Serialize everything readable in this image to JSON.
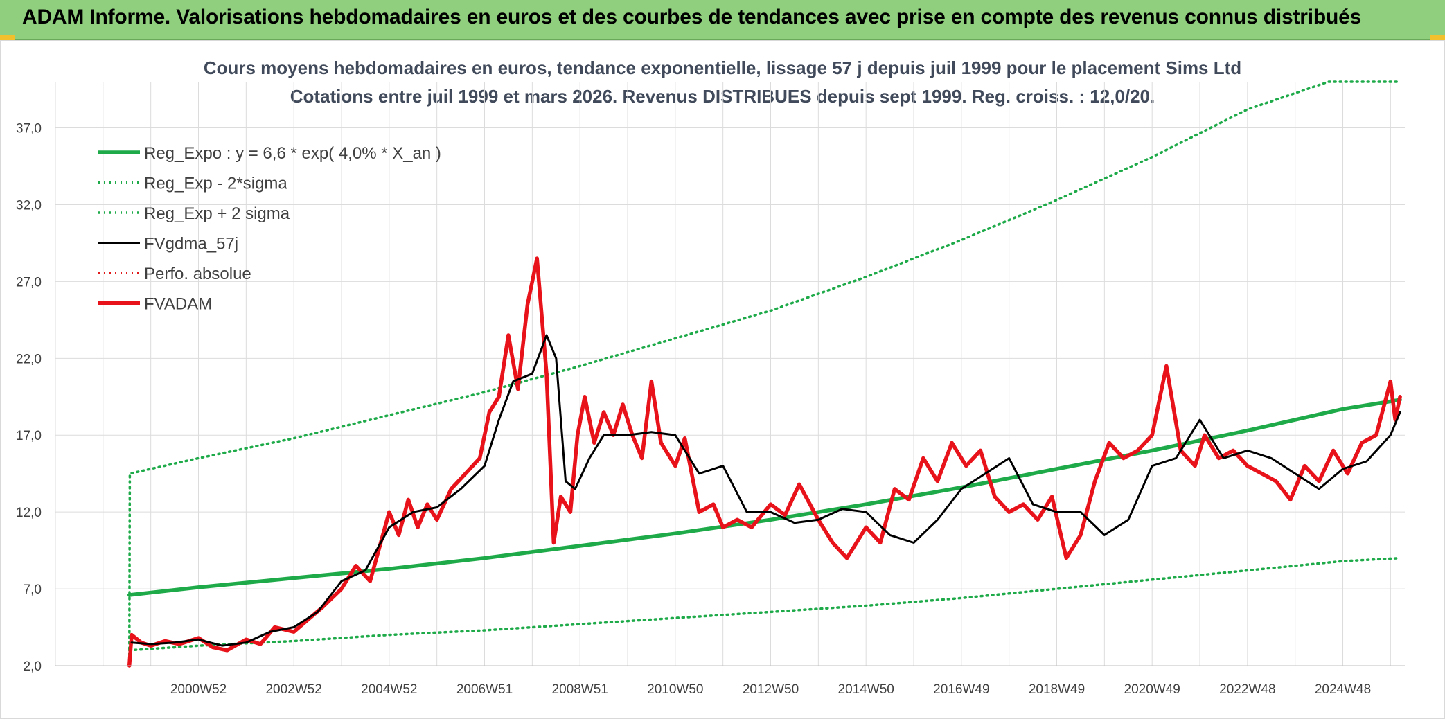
{
  "header": {
    "banner_title": "ADAM Informe. Valorisations hebdomadaires en euros et des courbes de tendances avec prise en compte des revenus connus distribués"
  },
  "chart_data": {
    "type": "line",
    "title": "Cours moyens hebdomadaires en euros, tendance exponentielle, lissage 57 j depuis juil 1999 pour le placement Sims Ltd",
    "subtitle": "Cotations entre juil 1999 et mars 2026. Revenus DISTRIBUES depuis sept 1999. Reg. croiss. : 12,0/20.",
    "xlabel": "",
    "ylabel": "",
    "ylim": [
      2,
      40
    ],
    "xlim": [
      1998.0,
      2026.3
    ],
    "grid": true,
    "legend_position": "top-left",
    "y_ticks": [
      "2,0",
      "7,0",
      "12,0",
      "17,0",
      "22,0",
      "27,0",
      "32,0",
      "37,0"
    ],
    "y_tick_values": [
      2,
      7,
      12,
      17,
      22,
      27,
      32,
      37
    ],
    "x_ticks": [
      "2000W52",
      "2002W52",
      "2004W52",
      "2006W51",
      "2008W51",
      "2010W50",
      "2012W50",
      "2014W50",
      "2016W49",
      "2018W49",
      "2020W49",
      "2022W48",
      "2024W48"
    ],
    "x_tick_values": [
      2001.0,
      2003.0,
      2005.0,
      2007.0,
      2009.0,
      2011.0,
      2013.0,
      2015.0,
      2017.0,
      2019.0,
      2021.0,
      2023.0,
      2025.0
    ],
    "series": [
      {
        "name": "Reg_Expo : y = 6,6 * exp( 4,0% *  X_an )",
        "color": "#1faa4a",
        "style": "solid-thick",
        "x": [
          1999.55,
          2001,
          2003,
          2005,
          2007,
          2009,
          2011,
          2013,
          2015,
          2017,
          2019,
          2021,
          2023,
          2025,
          2026.2
        ],
        "values": [
          6.6,
          7.1,
          7.7,
          8.3,
          9.0,
          9.8,
          10.6,
          11.5,
          12.5,
          13.6,
          14.8,
          16.0,
          17.3,
          18.7,
          19.3
        ]
      },
      {
        "name": "Reg_Exp - 2*sigma",
        "color": "#1faa4a",
        "style": "dotted",
        "x": [
          1999.55,
          2001,
          2003,
          2005,
          2007,
          2009,
          2011,
          2013,
          2015,
          2017,
          2019,
          2021,
          2023,
          2025,
          2026.2
        ],
        "values": [
          3.0,
          3.3,
          3.6,
          4.0,
          4.3,
          4.7,
          5.1,
          5.5,
          5.9,
          6.4,
          7.0,
          7.6,
          8.2,
          8.8,
          9.0
        ]
      },
      {
        "name": "Reg_Exp + 2 sigma",
        "color": "#1faa4a",
        "style": "dotted",
        "x": [
          1999.55,
          1999.56,
          2001,
          2003,
          2005,
          2007,
          2009,
          2011,
          2013,
          2015,
          2017,
          2019,
          2021,
          2023,
          2024.7,
          2025,
          2026.2
        ],
        "values": [
          2.0,
          14.5,
          15.5,
          16.8,
          18.3,
          19.8,
          21.5,
          23.3,
          25.1,
          27.3,
          29.7,
          32.3,
          35.1,
          38.2,
          40.0,
          40.0,
          40.0
        ]
      },
      {
        "name": "FVgdma_57j",
        "color": "#000000",
        "style": "solid",
        "x": [
          1999.6,
          2000.0,
          2000.5,
          2001.0,
          2001.5,
          2002.0,
          2002.5,
          2003.0,
          2003.5,
          2004.0,
          2004.5,
          2005.0,
          2005.5,
          2006.0,
          2006.5,
          2007.0,
          2007.3,
          2007.6,
          2008.0,
          2008.3,
          2008.5,
          2008.7,
          2008.9,
          2009.2,
          2009.5,
          2010.0,
          2010.5,
          2011.0,
          2011.5,
          2012.0,
          2012.5,
          2013.0,
          2013.5,
          2014.0,
          2014.5,
          2015.0,
          2015.5,
          2016.0,
          2016.5,
          2017.0,
          2017.5,
          2018.0,
          2018.5,
          2019.0,
          2019.5,
          2020.0,
          2020.5,
          2021.0,
          2021.5,
          2022.0,
          2022.5,
          2023.0,
          2023.5,
          2024.0,
          2024.5,
          2025.0,
          2025.5,
          2026.0,
          2026.2
        ],
        "values": [
          3.5,
          3.4,
          3.5,
          3.7,
          3.3,
          3.5,
          4.2,
          4.5,
          5.5,
          7.5,
          8.2,
          11.0,
          12.0,
          12.3,
          13.5,
          15.0,
          18.0,
          20.5,
          21.0,
          23.5,
          22.0,
          14.0,
          13.5,
          15.5,
          17.0,
          17.0,
          17.2,
          17.0,
          14.5,
          15.0,
          12.0,
          12.0,
          11.3,
          11.5,
          12.2,
          12.0,
          10.5,
          10.0,
          11.5,
          13.5,
          14.5,
          15.5,
          12.5,
          12.0,
          12.0,
          10.5,
          11.5,
          15.0,
          15.5,
          18.0,
          15.5,
          16.0,
          15.5,
          14.5,
          13.5,
          14.8,
          15.3,
          17.0,
          18.5
        ]
      },
      {
        "name": "Perfo. absolue",
        "color": "#e0191b",
        "style": "dotted",
        "x": [],
        "values": []
      },
      {
        "name": "FVADAM",
        "color": "#e8121a",
        "style": "solid-thick",
        "x": [
          1999.55,
          1999.6,
          1999.8,
          2000.0,
          2000.3,
          2000.6,
          2001.0,
          2001.3,
          2001.6,
          2002.0,
          2002.3,
          2002.6,
          2003.0,
          2003.3,
          2003.6,
          2004.0,
          2004.3,
          2004.6,
          2005.0,
          2005.2,
          2005.4,
          2005.6,
          2005.8,
          2006.0,
          2006.3,
          2006.6,
          2006.9,
          2007.1,
          2007.3,
          2007.5,
          2007.7,
          2007.9,
          2008.1,
          2008.3,
          2008.45,
          2008.6,
          2008.8,
          2008.95,
          2009.1,
          2009.3,
          2009.5,
          2009.7,
          2009.9,
          2010.1,
          2010.3,
          2010.5,
          2010.7,
          2011.0,
          2011.2,
          2011.5,
          2011.8,
          2012.0,
          2012.3,
          2012.6,
          2013.0,
          2013.3,
          2013.6,
          2014.0,
          2014.3,
          2014.6,
          2015.0,
          2015.3,
          2015.6,
          2015.9,
          2016.2,
          2016.5,
          2016.8,
          2017.1,
          2017.4,
          2017.7,
          2018.0,
          2018.3,
          2018.6,
          2018.9,
          2019.2,
          2019.5,
          2019.8,
          2020.1,
          2020.4,
          2020.7,
          2021.0,
          2021.3,
          2021.6,
          2021.9,
          2022.1,
          2022.4,
          2022.7,
          2023.0,
          2023.3,
          2023.6,
          2023.9,
          2024.2,
          2024.5,
          2024.8,
          2025.1,
          2025.4,
          2025.7,
          2026.0,
          2026.1,
          2026.2
        ],
        "values": [
          2.0,
          4.0,
          3.5,
          3.3,
          3.6,
          3.4,
          3.8,
          3.2,
          3.0,
          3.7,
          3.4,
          4.5,
          4.2,
          5.0,
          5.8,
          7.0,
          8.5,
          7.5,
          12.0,
          10.5,
          12.8,
          11.0,
          12.5,
          11.5,
          13.5,
          14.5,
          15.5,
          18.5,
          19.5,
          23.5,
          20.0,
          25.5,
          28.5,
          21.0,
          10.0,
          13.0,
          12.0,
          17.0,
          19.5,
          16.5,
          18.5,
          17.0,
          19.0,
          17.0,
          15.5,
          20.5,
          16.5,
          15.0,
          16.8,
          12.0,
          12.5,
          11.0,
          11.5,
          11.0,
          12.5,
          11.8,
          13.8,
          11.5,
          10.0,
          9.0,
          11.0,
          10.0,
          13.5,
          12.8,
          15.5,
          14.0,
          16.5,
          15.0,
          16.0,
          13.0,
          12.0,
          12.5,
          11.5,
          13.0,
          9.0,
          10.5,
          14.0,
          16.5,
          15.5,
          16.0,
          17.0,
          21.5,
          16.0,
          15.0,
          17.0,
          15.5,
          16.0,
          15.0,
          14.5,
          14.0,
          12.8,
          15.0,
          14.0,
          16.0,
          14.5,
          16.5,
          17.0,
          20.5,
          18.0,
          19.5
        ]
      }
    ]
  }
}
